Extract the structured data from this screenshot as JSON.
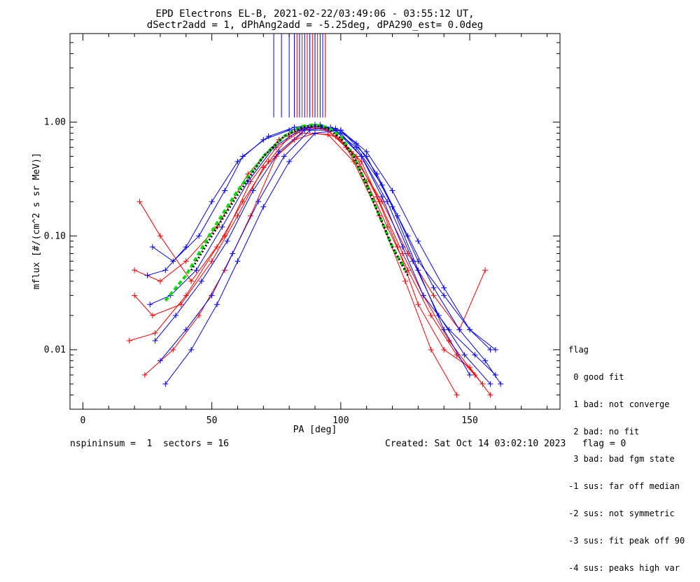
{
  "chart_data": {
    "type": "line",
    "title": "EPD Electrons EL-B, 2021-02-22/03:49:06 - 03:55:12 UT,",
    "subtitle": "dSectr2add = 1, dPhAng2add = -5.25deg, dPA290_est=   0.0deg",
    "xlabel": "PA [deg]",
    "ylabel": "mflux [#/(cm^2 s sr MeV)]",
    "xlim": [
      -5,
      185
    ],
    "ylim": [
      0.003,
      6
    ],
    "yscale": "log",
    "x_ticks": [
      0,
      50,
      100,
      150
    ],
    "y_ticks": [
      {
        "value": 0.01,
        "label": "0.01"
      },
      {
        "value": 0.1,
        "label": "0.10"
      },
      {
        "value": 1.0,
        "label": "1.00"
      }
    ],
    "series": [
      {
        "color": "#ff0000",
        "marker": "+",
        "x": [
          18,
          28,
          40,
          52,
          62,
          72,
          80,
          88,
          95,
          102,
          110,
          118,
          126,
          135,
          145,
          155
        ],
        "y": [
          0.012,
          0.014,
          0.03,
          0.08,
          0.2,
          0.45,
          0.75,
          0.9,
          0.85,
          0.6,
          0.3,
          0.12,
          0.05,
          0.02,
          0.009,
          0.005
        ]
      },
      {
        "color": "#ff0000",
        "marker": "+",
        "x": [
          22,
          30,
          42,
          55,
          65,
          75,
          85,
          92,
          100,
          108,
          115,
          124,
          132,
          142,
          152
        ],
        "y": [
          0.2,
          0.1,
          0.04,
          0.1,
          0.3,
          0.6,
          0.85,
          0.92,
          0.7,
          0.45,
          0.2,
          0.07,
          0.03,
          0.012,
          0.006
        ]
      },
      {
        "color": "#ff0000",
        "marker": "+",
        "x": [
          20,
          27,
          38,
          50,
          60,
          70,
          82,
          90,
          98,
          106,
          114,
          122,
          130,
          140,
          150,
          158
        ],
        "y": [
          0.03,
          0.02,
          0.025,
          0.06,
          0.15,
          0.4,
          0.7,
          0.8,
          0.75,
          0.5,
          0.22,
          0.08,
          0.025,
          0.01,
          0.007,
          0.004
        ]
      },
      {
        "color": "#ff0000",
        "marker": "+",
        "x": [
          24,
          35,
          45,
          55,
          65,
          75,
          85,
          95,
          105,
          115,
          125,
          135,
          145
        ],
        "y": [
          0.006,
          0.01,
          0.02,
          0.05,
          0.15,
          0.5,
          0.8,
          0.78,
          0.45,
          0.15,
          0.04,
          0.01,
          0.004
        ]
      },
      {
        "color": "#ff0000",
        "marker": "+",
        "x": [
          20,
          30,
          40,
          52,
          64,
          76,
          86,
          94,
          104,
          116,
          126,
          136,
          146,
          156
        ],
        "y": [
          0.05,
          0.04,
          0.06,
          0.12,
          0.35,
          0.7,
          0.9,
          0.88,
          0.55,
          0.2,
          0.07,
          0.03,
          0.015,
          0.05
        ]
      },
      {
        "color": "#0000ff",
        "marker": "+",
        "x": [
          26,
          34,
          44,
          54,
          64,
          74,
          84,
          92,
          100,
          108,
          116,
          124,
          132,
          142,
          152,
          160
        ],
        "y": [
          0.025,
          0.03,
          0.05,
          0.12,
          0.3,
          0.6,
          0.85,
          0.95,
          0.8,
          0.5,
          0.22,
          0.08,
          0.03,
          0.015,
          0.009,
          0.006
        ]
      },
      {
        "color": "#0000ff",
        "marker": "+",
        "x": [
          28,
          36,
          46,
          56,
          66,
          76,
          86,
          96,
          106,
          116,
          126,
          136,
          146,
          156,
          162
        ],
        "y": [
          0.012,
          0.02,
          0.04,
          0.09,
          0.25,
          0.55,
          0.85,
          0.9,
          0.6,
          0.28,
          0.1,
          0.035,
          0.015,
          0.008,
          0.005
        ]
      },
      {
        "color": "#0000ff",
        "marker": "+",
        "x": [
          25,
          32,
          40,
          50,
          60,
          70,
          80,
          90,
          100,
          110,
          120,
          130,
          140,
          150,
          158
        ],
        "y": [
          0.045,
          0.05,
          0.08,
          0.2,
          0.45,
          0.7,
          0.85,
          0.92,
          0.85,
          0.55,
          0.25,
          0.09,
          0.035,
          0.015,
          0.01
        ]
      },
      {
        "color": "#0000ff",
        "marker": "+",
        "x": [
          30,
          40,
          50,
          58,
          68,
          78,
          88,
          98,
          108,
          118,
          128,
          138,
          148,
          158
        ],
        "y": [
          0.008,
          0.015,
          0.03,
          0.07,
          0.2,
          0.5,
          0.85,
          0.85,
          0.5,
          0.2,
          0.06,
          0.02,
          0.009,
          0.005
        ]
      },
      {
        "color": "#0000ff",
        "marker": "+",
        "x": [
          27,
          35,
          45,
          55,
          62,
          72,
          82,
          90,
          98,
          106,
          114,
          122,
          130,
          140,
          150,
          160
        ],
        "y": [
          0.08,
          0.06,
          0.1,
          0.25,
          0.5,
          0.75,
          0.9,
          0.95,
          0.88,
          0.65,
          0.35,
          0.15,
          0.06,
          0.03,
          0.015,
          0.01
        ]
      },
      {
        "color": "#0000ff",
        "marker": "+",
        "x": [
          32,
          42,
          52,
          60,
          70,
          80,
          90,
          100,
          110,
          120,
          130,
          140,
          150
        ],
        "y": [
          0.005,
          0.01,
          0.025,
          0.06,
          0.18,
          0.45,
          0.8,
          0.85,
          0.5,
          0.18,
          0.05,
          0.015,
          0.006
        ]
      }
    ],
    "fit_curves": [
      {
        "color": "#00dd00",
        "style": "dashed",
        "x": [
          32,
          40,
          50,
          60,
          70,
          78,
          85,
          90,
          95,
          100,
          105,
          110,
          115,
          120,
          125
        ],
        "y": [
          0.027,
          0.045,
          0.11,
          0.25,
          0.5,
          0.75,
          0.92,
          0.95,
          0.9,
          0.75,
          0.5,
          0.28,
          0.15,
          0.08,
          0.05
        ]
      },
      {
        "color": "#000000",
        "style": "dotted",
        "x": [
          42,
          50,
          60,
          70,
          78,
          85,
          90,
          95,
          100,
          105,
          110,
          115,
          120,
          126
        ],
        "y": [
          0.05,
          0.1,
          0.23,
          0.5,
          0.75,
          0.9,
          0.93,
          0.88,
          0.72,
          0.5,
          0.28,
          0.15,
          0.08,
          0.045
        ]
      }
    ],
    "vertical_lines": [
      {
        "color": "#0000ff",
        "x": [
          74,
          77,
          80,
          82,
          84,
          86,
          88,
          90,
          92,
          93
        ]
      },
      {
        "color": "#ff0000",
        "x": [
          83,
          85,
          87,
          89,
          91,
          94
        ]
      }
    ]
  },
  "legend": {
    "title": "flag",
    "items": [
      " 0 good fit",
      " 1 bad: not converge",
      " 2 bad: no fit",
      " 3 bad: bad fgm state",
      "-1 sus: far off median",
      "-2 sus: not symmetric",
      "-3 sus: fit peak off 90",
      "-4 sus: peaks high var"
    ]
  },
  "footer": {
    "left": "nspininsum =  1  sectors = 16",
    "right": "Created: Sat Oct 14 03:02:10 2023   flag = 0"
  }
}
